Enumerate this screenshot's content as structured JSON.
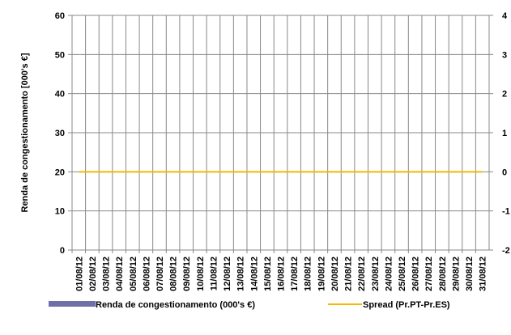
{
  "chart_data": {
    "type": "bar",
    "categories": [
      "01/08/12",
      "02/08/12",
      "03/08/12",
      "04/08/12",
      "05/08/12",
      "06/08/12",
      "07/08/12",
      "08/08/12",
      "09/08/12",
      "10/08/12",
      "11/08/12",
      "12/08/12",
      "13/08/12",
      "14/08/12",
      "15/08/12",
      "16/08/12",
      "17/08/12",
      "18/08/12",
      "19/08/12",
      "20/08/12",
      "21/08/12",
      "22/08/12",
      "23/08/12",
      "24/08/12",
      "25/08/12",
      "26/08/12",
      "27/08/12",
      "28/08/12",
      "29/08/12",
      "30/08/12",
      "31/08/12"
    ],
    "series": [
      {
        "name": "Renda de congestionamento (000's €)",
        "type": "bar",
        "axis": "left",
        "color": "#7070a8",
        "values": [
          0,
          0,
          0,
          0,
          0,
          0,
          0,
          0,
          0,
          0,
          0,
          0,
          0,
          0,
          0,
          0,
          0,
          0,
          0,
          0,
          0,
          0,
          0,
          0,
          0,
          0,
          0,
          0,
          0,
          0,
          0
        ]
      },
      {
        "name": "Spread (Pr.PT-Pr.ES)",
        "type": "line",
        "axis": "right",
        "color": "#f5b800",
        "values": [
          0,
          0,
          0,
          0,
          0,
          0,
          0,
          0,
          0,
          0,
          0,
          0,
          0,
          0,
          0,
          0,
          0,
          0,
          0,
          0,
          0,
          0,
          0,
          0,
          0,
          0,
          0,
          0,
          0,
          0,
          0
        ]
      }
    ],
    "ylabel": "Renda de congestionamento [000's €]",
    "ylim": [
      0,
      60
    ],
    "yticks": [
      0,
      10,
      20,
      30,
      40,
      50,
      60
    ],
    "y2lim": [
      -2,
      4
    ],
    "y2ticks": [
      -2,
      -1,
      0,
      1,
      2,
      3,
      4
    ],
    "grid": true,
    "legend": "bottom"
  }
}
